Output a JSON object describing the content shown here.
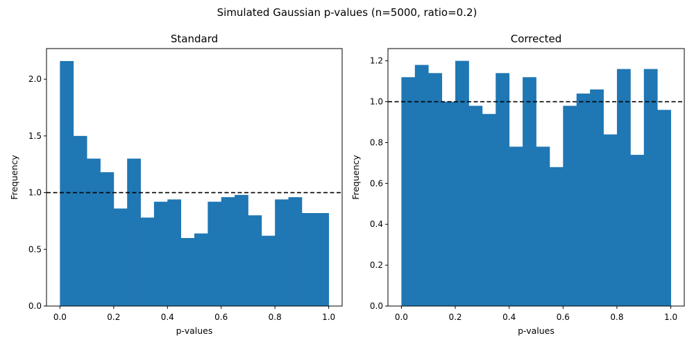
{
  "figure": {
    "suptitle": "Simulated Gaussian p-values (n=5000, ratio=0.2)"
  },
  "chart_data": [
    {
      "type": "bar",
      "title": "Standard",
      "xlabel": "p-values",
      "ylabel": "Frequency",
      "xlim": [
        -0.05,
        1.05
      ],
      "ylim": [
        0,
        2.27
      ],
      "xticks": [
        0.0,
        0.2,
        0.4,
        0.6,
        0.8,
        1.0
      ],
      "xtick_labels": [
        "0.0",
        "0.2",
        "0.4",
        "0.6",
        "0.8",
        "1.0"
      ],
      "yticks": [
        0.0,
        0.5,
        1.0,
        1.5,
        2.0
      ],
      "ytick_labels": [
        "0.0",
        "0.5",
        "1.0",
        "1.5",
        "2.0"
      ],
      "bin_edges": [
        0.0,
        0.05,
        0.1,
        0.15,
        0.2,
        0.25,
        0.3,
        0.35,
        0.4,
        0.45,
        0.5,
        0.55,
        0.6,
        0.65,
        0.7,
        0.75,
        0.8,
        0.85,
        0.9,
        0.95,
        1.0
      ],
      "values": [
        2.16,
        1.5,
        1.3,
        1.18,
        0.86,
        1.3,
        0.78,
        0.92,
        0.94,
        0.6,
        0.64,
        0.92,
        0.96,
        0.98,
        0.8,
        0.62,
        0.94,
        0.96,
        0.82,
        0.82
      ],
      "reference_line": 1.0,
      "bar_color": "#1f77b4",
      "grid": false
    },
    {
      "type": "bar",
      "title": "Corrected",
      "xlabel": "p-values",
      "ylabel": "Frequency",
      "xlim": [
        -0.05,
        1.05
      ],
      "ylim": [
        0,
        1.26
      ],
      "xticks": [
        0.0,
        0.2,
        0.4,
        0.6,
        0.8,
        1.0
      ],
      "xtick_labels": [
        "0.0",
        "0.2",
        "0.4",
        "0.6",
        "0.8",
        "1.0"
      ],
      "yticks": [
        0.0,
        0.2,
        0.4,
        0.6,
        0.8,
        1.0,
        1.2
      ],
      "ytick_labels": [
        "0.0",
        "0.2",
        "0.4",
        "0.6",
        "0.8",
        "1.0",
        "1.2"
      ],
      "bin_edges": [
        0.0,
        0.05,
        0.1,
        0.15,
        0.2,
        0.25,
        0.3,
        0.35,
        0.4,
        0.45,
        0.5,
        0.55,
        0.6,
        0.65,
        0.7,
        0.75,
        0.8,
        0.85,
        0.9,
        0.95,
        1.0
      ],
      "values": [
        1.12,
        1.18,
        1.14,
        1.0,
        1.2,
        0.98,
        0.94,
        1.14,
        0.78,
        1.12,
        0.78,
        0.68,
        0.98,
        1.04,
        1.06,
        0.84,
        1.16,
        0.74,
        1.16,
        0.96
      ],
      "reference_line": 1.0,
      "bar_color": "#1f77b4",
      "grid": false
    }
  ]
}
